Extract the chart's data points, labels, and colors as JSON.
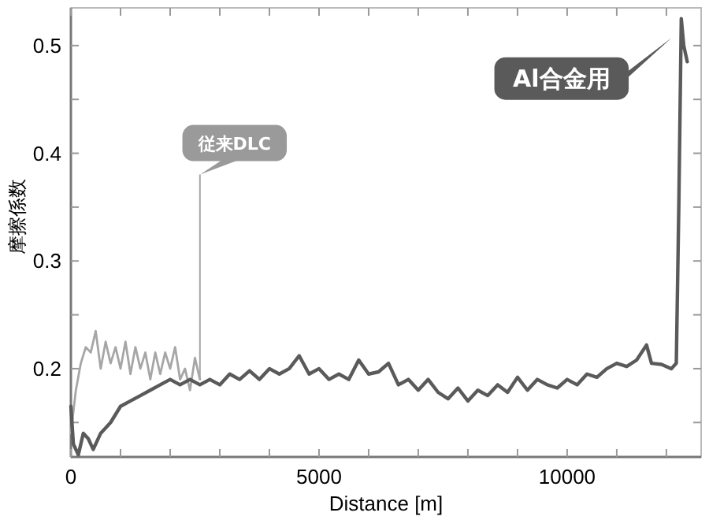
{
  "chart_data": {
    "type": "line",
    "xlabel": "Distance [m]",
    "ylabel": "摩擦係数",
    "xlim": [
      0,
      12700
    ],
    "ylim": [
      0.118,
      0.535
    ],
    "xticks": [
      0,
      {
        "value": 1000,
        "label": null
      },
      {
        "value": 2000,
        "label": null
      },
      {
        "value": 3000,
        "label": null
      },
      {
        "value": 4000,
        "label": null
      },
      5000,
      {
        "value": 6000,
        "label": null
      },
      {
        "value": 7000,
        "label": null
      },
      {
        "value": 8000,
        "label": null
      },
      {
        "value": 9000,
        "label": null
      },
      10000,
      {
        "value": 11000,
        "label": null
      },
      {
        "value": 12000,
        "label": null
      }
    ],
    "yticks": [
      {
        "value": 0.15,
        "label": null
      },
      0.2,
      {
        "value": 0.25,
        "label": null
      },
      0.3,
      {
        "value": 0.35,
        "label": null
      },
      0.4,
      {
        "value": 0.45,
        "label": null
      },
      0.5
    ],
    "grid": false,
    "legend": false,
    "marker": "none",
    "line_style": "solid",
    "series": [
      {
        "name": "従来DLC",
        "color": "#a6a6a6",
        "x": [
          0,
          100,
          200,
          300,
          400,
          500,
          600,
          700,
          800,
          900,
          1000,
          1100,
          1200,
          1300,
          1400,
          1500,
          1600,
          1700,
          1800,
          1900,
          2000,
          2100,
          2200,
          2300,
          2400,
          2500,
          2600
        ],
        "values": [
          0.14,
          0.18,
          0.205,
          0.22,
          0.215,
          0.235,
          0.2,
          0.225,
          0.205,
          0.22,
          0.2,
          0.225,
          0.195,
          0.22,
          0.2,
          0.215,
          0.19,
          0.215,
          0.195,
          0.215,
          0.2,
          0.22,
          0.19,
          0.2,
          0.18,
          0.21,
          0.19
        ]
      },
      {
        "name": "Al合金用",
        "color": "#5a5a5a",
        "x": [
          0,
          50,
          150,
          250,
          350,
          450,
          600,
          800,
          1000,
          1200,
          1400,
          1600,
          1800,
          2000,
          2200,
          2400,
          2600,
          2800,
          3000,
          3200,
          3400,
          3600,
          3800,
          4000,
          4200,
          4400,
          4600,
          4800,
          5000,
          5200,
          5400,
          5600,
          5800,
          6000,
          6200,
          6400,
          6600,
          6800,
          7000,
          7200,
          7400,
          7600,
          7800,
          8000,
          8200,
          8400,
          8600,
          8800,
          9000,
          9200,
          9400,
          9600,
          9800,
          10000,
          10200,
          10400,
          10600,
          10800,
          11000,
          11200,
          11400,
          11600,
          11700,
          11900,
          12100,
          12200,
          12250,
          12300,
          12350,
          12420
        ],
        "values": [
          0.165,
          0.13,
          0.12,
          0.14,
          0.135,
          0.125,
          0.14,
          0.15,
          0.165,
          0.17,
          0.175,
          0.18,
          0.185,
          0.19,
          0.185,
          0.19,
          0.185,
          0.19,
          0.185,
          0.195,
          0.19,
          0.198,
          0.19,
          0.2,
          0.195,
          0.2,
          0.212,
          0.195,
          0.2,
          0.19,
          0.195,
          0.19,
          0.208,
          0.195,
          0.197,
          0.205,
          0.185,
          0.19,
          0.18,
          0.19,
          0.178,
          0.172,
          0.182,
          0.17,
          0.18,
          0.175,
          0.185,
          0.178,
          0.192,
          0.18,
          0.19,
          0.185,
          0.182,
          0.19,
          0.185,
          0.195,
          0.192,
          0.2,
          0.205,
          0.202,
          0.208,
          0.222,
          0.205,
          0.204,
          0.2,
          0.205,
          0.35,
          0.525,
          0.5,
          0.485
        ]
      }
    ]
  }
}
